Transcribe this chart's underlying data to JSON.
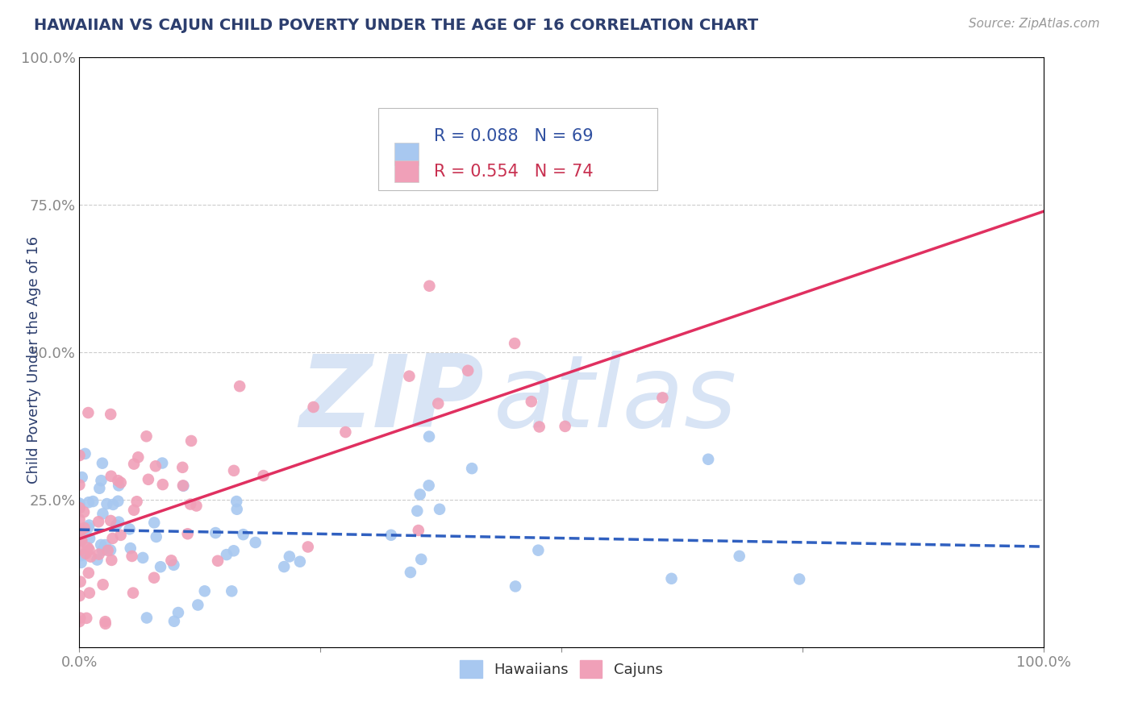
{
  "title": "HAWAIIAN VS CAJUN CHILD POVERTY UNDER THE AGE OF 16 CORRELATION CHART",
  "source_text": "Source: ZipAtlas.com",
  "ylabel": "Child Poverty Under the Age of 16",
  "hawaiian_R": 0.088,
  "hawaiian_N": 69,
  "cajun_R": 0.554,
  "cajun_N": 74,
  "hawaiian_color": "#A8C8F0",
  "cajun_color": "#F0A0B8",
  "hawaiian_line_color": "#3060C0",
  "cajun_line_color": "#E03060",
  "background_color": "#FFFFFF",
  "grid_color": "#CCCCCC",
  "watermark_zip": "ZIP",
  "watermark_atlas": "atlas",
  "watermark_color": "#D8E4F5",
  "title_color": "#2C3E6E",
  "legend_color": "#3050A0",
  "legend_N_color": "#C83050",
  "ytick_labels": [
    "25.0%",
    "50.0%",
    "75.0%",
    "100.0%"
  ],
  "ytick_positions": [
    0.25,
    0.5,
    0.75,
    1.0
  ]
}
